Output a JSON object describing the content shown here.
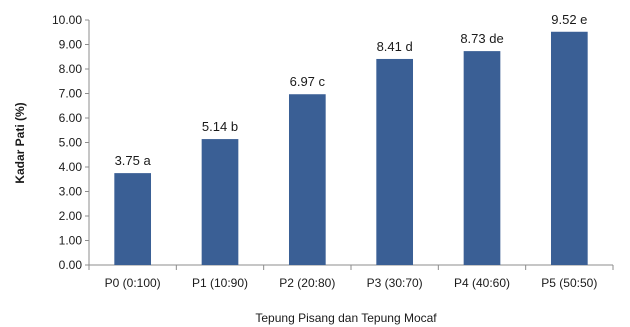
{
  "chart_data": {
    "type": "bar",
    "categories": [
      "P0 (0:100)",
      "P1 (10:90)",
      "P2 (20:80)",
      "P3 (30:70)",
      "P4 (40:60)",
      "P5 (50:50)"
    ],
    "values": [
      3.75,
      5.14,
      6.97,
      8.41,
      8.73,
      9.52
    ],
    "data_labels": [
      "3.75 a",
      "5.14 b",
      "6.97 c",
      "8.41 d",
      "8.73 de",
      "9.52 e"
    ],
    "title": "",
    "xlabel": "Tepung Pisang dan Tepung Mocaf",
    "ylabel": "Kadar Pati (%)",
    "ylim": [
      0,
      10
    ],
    "yticks": [
      "0.00",
      "1.00",
      "2.00",
      "3.00",
      "4.00",
      "5.00",
      "6.00",
      "7.00",
      "8.00",
      "9.00",
      "10.00"
    ],
    "grid": false,
    "legend": "none",
    "bar_color": "#3a5f95"
  }
}
